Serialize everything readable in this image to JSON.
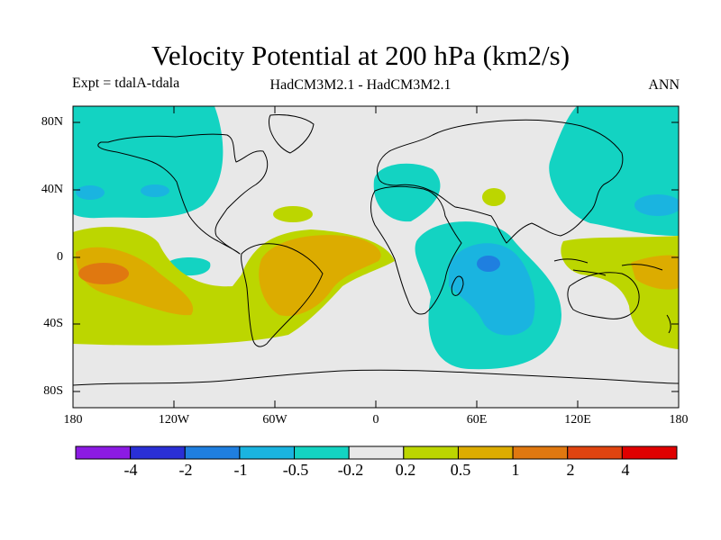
{
  "figure": {
    "title": "Velocity Potential at 200 hPa (km2/s)",
    "experiment": "Expt = tdalA-tdala",
    "models": "HadCM3M2.1 - HadCM3M2.1",
    "season": "ANN"
  },
  "axes": {
    "lat_labels": [
      "80N",
      "40N",
      "0",
      "40S",
      "80S"
    ],
    "lon_labels": [
      "180",
      "120W",
      "60W",
      "0",
      "60E",
      "120E",
      "180"
    ]
  },
  "colorbar": {
    "levels": [
      "-4",
      "-2",
      "-1",
      "-0.5",
      "-0.2",
      "0.2",
      "0.5",
      "1",
      "2",
      "4"
    ],
    "colors": [
      "#8c1be3",
      "#2a2fd6",
      "#1f7fe0",
      "#1ab4e0",
      "#13d3c2",
      "#e8e8e8",
      "#bcd600",
      "#dcac00",
      "#e07810",
      "#e04410",
      "#e00000"
    ]
  },
  "palette": {
    "land_outline": "#000000",
    "neutral": "#e8e8e8"
  }
}
